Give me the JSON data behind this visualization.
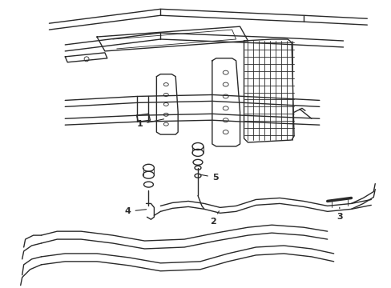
{
  "bg_color": "#ffffff",
  "line_color": "#2a2a2a",
  "lw": 1.0,
  "tlw": 0.6,
  "figsize": [
    4.89,
    3.6
  ],
  "dpi": 100
}
